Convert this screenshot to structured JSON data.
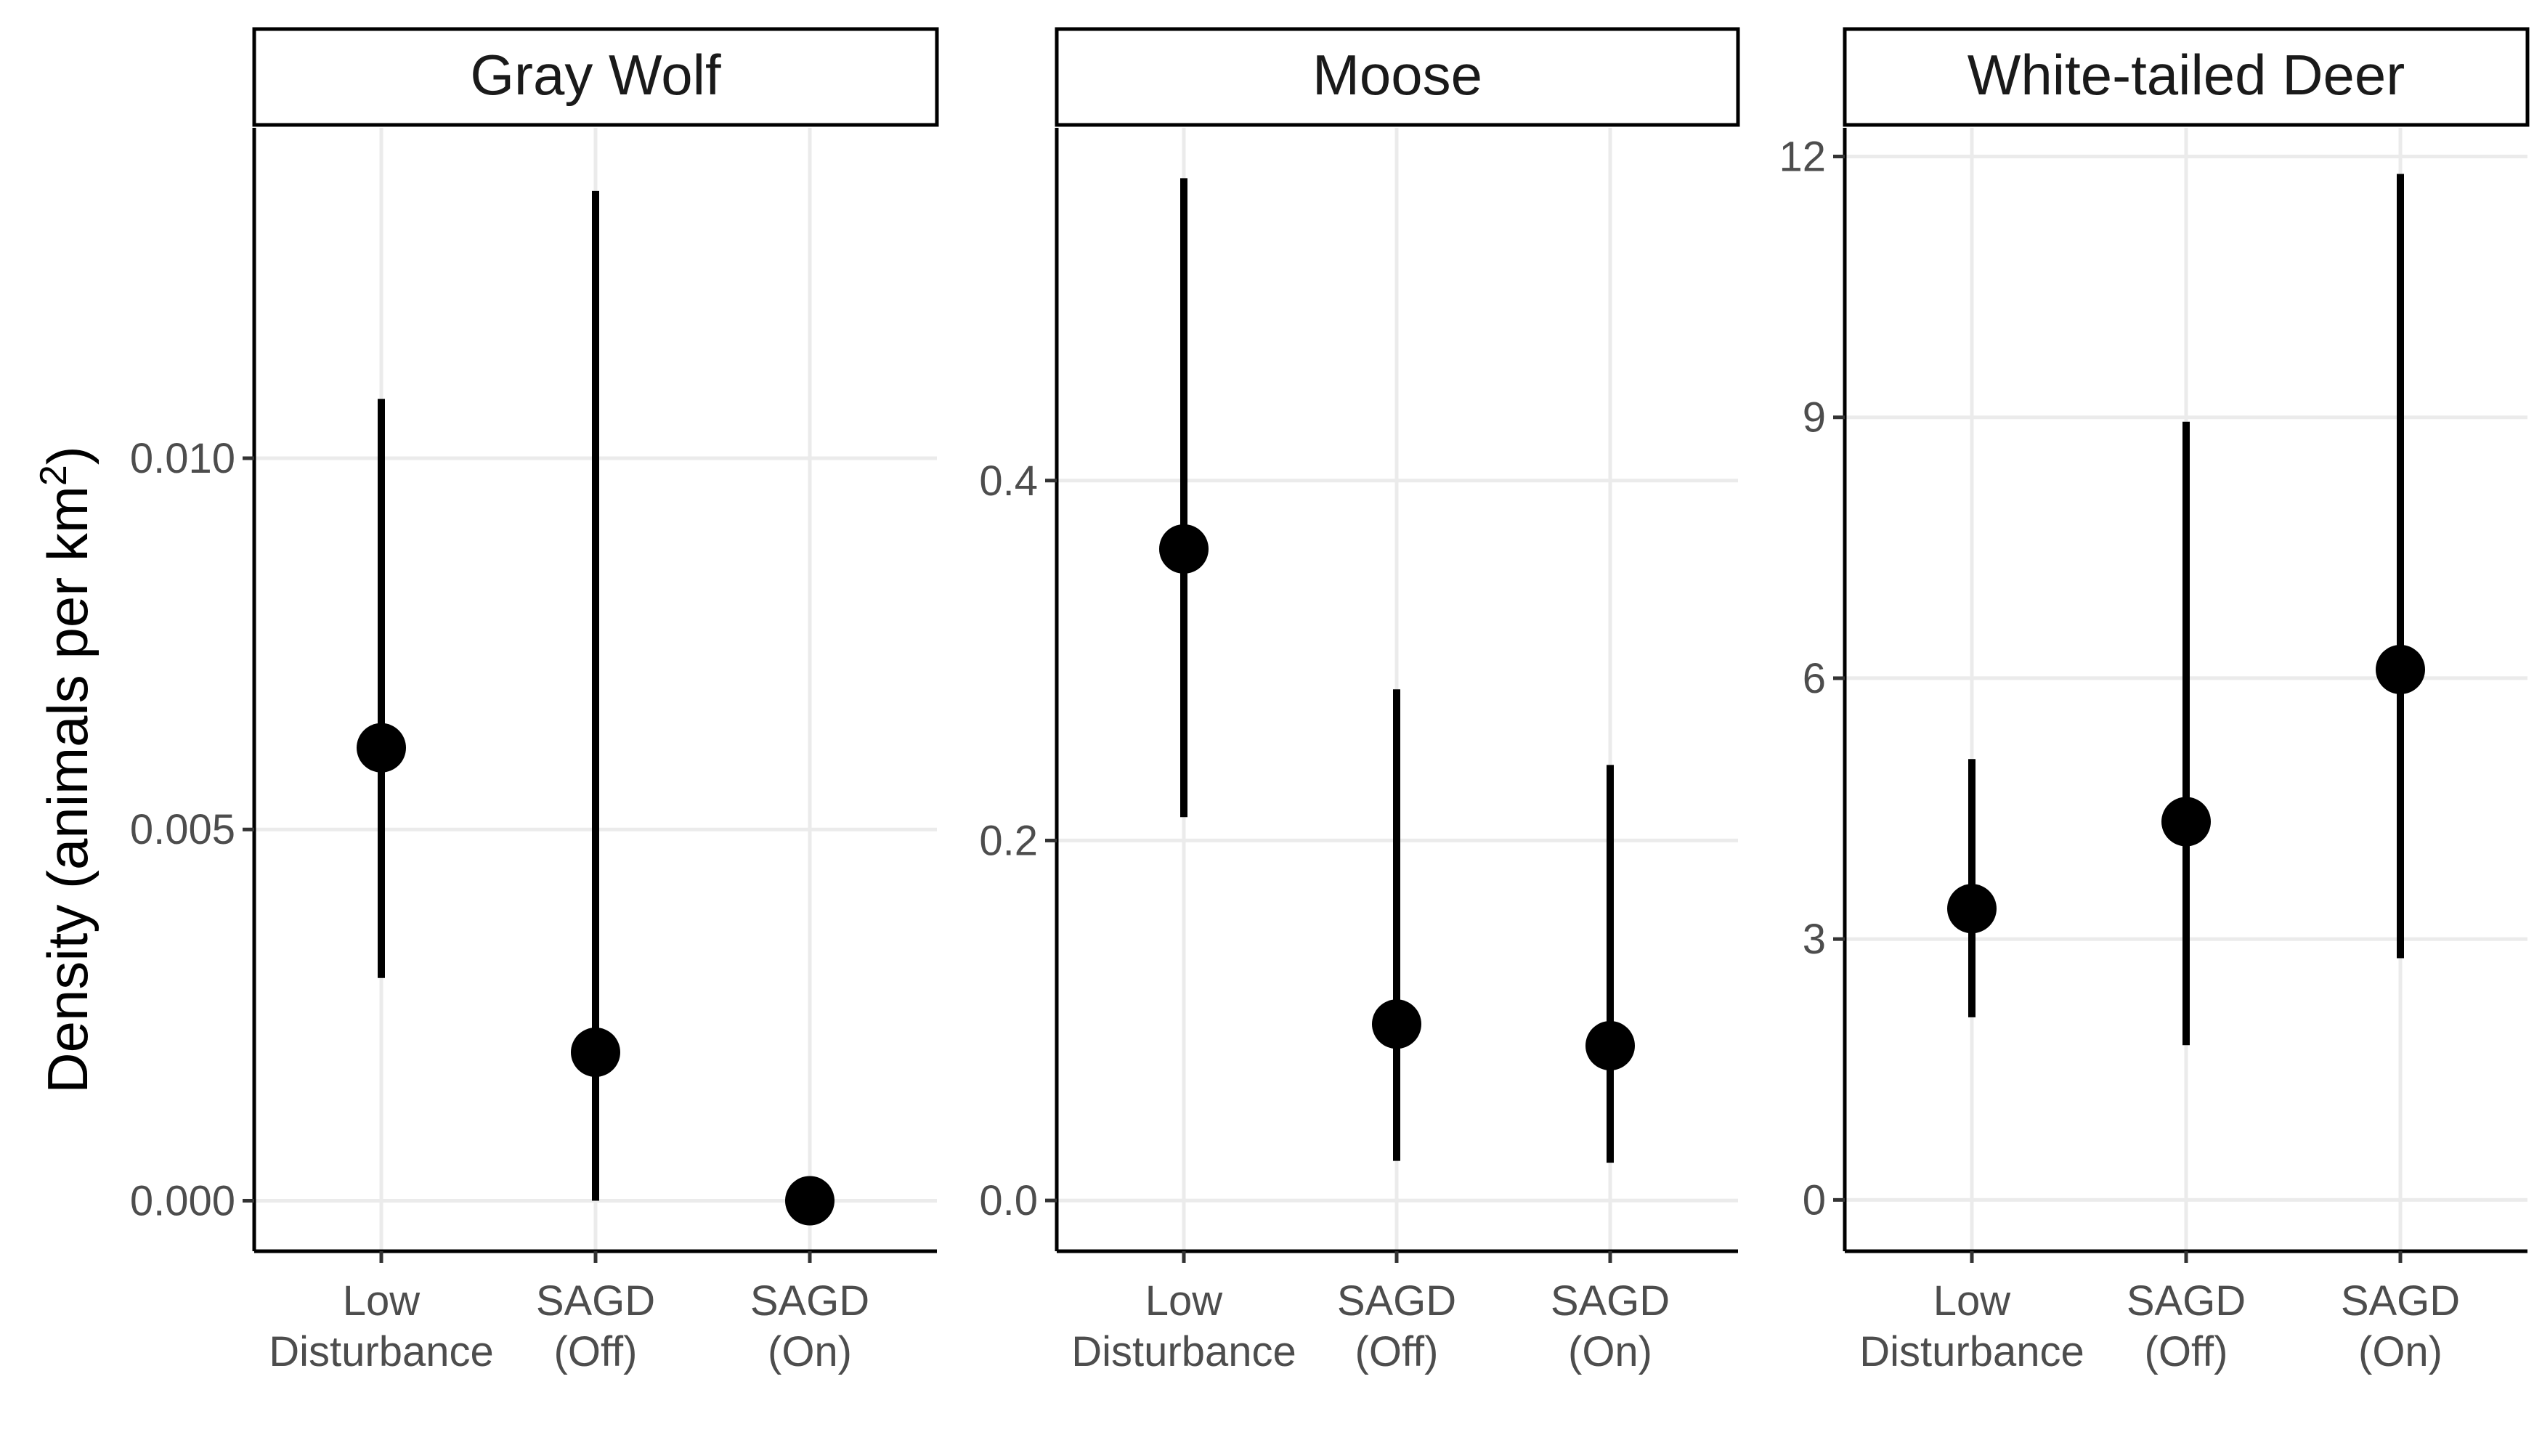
{
  "chart_data": {
    "type": "scatter",
    "style": "faceted point estimates with vertical error bars",
    "ylabel": "Density (animals per km",
    "ylabel_superscript": "2",
    "ylabel_close": ")",
    "categories": [
      "Low\nDisturbance",
      "SAGD\n(Off)",
      "SAGD\n(On)"
    ],
    "grid": true,
    "colors": {
      "mark": "#000000",
      "grid": "#ebebeb",
      "axis": "#000000",
      "tick_text": "#4d4d4d"
    },
    "panels": [
      {
        "title": "Gray Wolf",
        "ylim": [
          -0.00068,
          0.01445
        ],
        "yticks": [
          0.0,
          0.005,
          0.01
        ],
        "ytick_labels": [
          "0.000",
          "0.005",
          "0.010"
        ],
        "values": [
          0.0061,
          0.002,
          0.0
        ],
        "lower": [
          0.003,
          0.0,
          0.0
        ],
        "upper": [
          0.0108,
          0.0136,
          0.0
        ]
      },
      {
        "title": "Moose",
        "ylim": [
          -0.0282,
          0.596
        ],
        "yticks": [
          0.0,
          0.2,
          0.4
        ],
        "ytick_labels": [
          "0.0",
          "0.2",
          "0.4"
        ],
        "values": [
          0.362,
          0.098,
          0.086
        ],
        "lower": [
          0.213,
          0.022,
          0.021
        ],
        "upper": [
          0.568,
          0.284,
          0.242
        ]
      },
      {
        "title": "White-tailed Deer",
        "ylim": [
          -0.59,
          12.33
        ],
        "yticks": [
          0,
          3,
          6,
          9,
          12
        ],
        "ytick_labels": [
          "0",
          "3",
          "6",
          "9",
          "12"
        ],
        "values": [
          3.35,
          4.35,
          6.1
        ],
        "lower": [
          2.1,
          1.78,
          2.78
        ],
        "upper": [
          5.07,
          8.95,
          11.8
        ]
      }
    ]
  }
}
